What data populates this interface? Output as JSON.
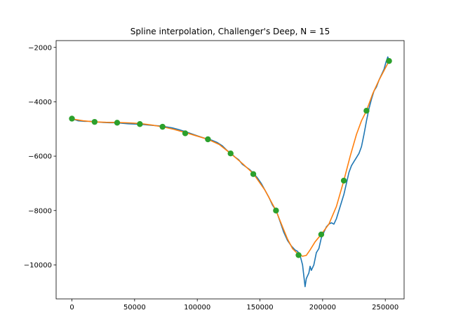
{
  "chart_data": {
    "type": "line",
    "title": "Spline interpolation, Challenger's Deep, N = 15",
    "xlabel": "",
    "ylabel": "",
    "xlim": [
      -12600,
      265000
    ],
    "ylim": [
      -11250,
      -1750
    ],
    "xticks": [
      0,
      50000,
      100000,
      150000,
      200000,
      250000
    ],
    "xtick_labels": [
      "0",
      "50000",
      "100000",
      "150000",
      "200000",
      "250000"
    ],
    "yticks": [
      -10000,
      -8000,
      -6000,
      -4000,
      -2000
    ],
    "ytick_labels": [
      "−10000",
      "−8000",
      "−6000",
      "−4000",
      "−2000"
    ],
    "grid": false,
    "colors": {
      "data": "#1f77b4",
      "spline": "#ff7f0e",
      "nodes": "#2ca02c"
    },
    "series": [
      {
        "kind": "line",
        "color": "#1f77b4",
        "x": [
          0,
          5000,
          10000,
          15000,
          20000,
          25000,
          30000,
          36000,
          40000,
          45000,
          50000,
          55000,
          60000,
          65000,
          70000,
          75000,
          80000,
          85000,
          90000,
          95000,
          100000,
          105000,
          109000,
          112000,
          116000,
          120000,
          124000,
          127000,
          130000,
          133000,
          136000,
          139000,
          142000,
          145000,
          148000,
          151000,
          154000,
          157000,
          160000,
          163000,
          166000,
          169000,
          172000,
          175000,
          178000,
          180000,
          182000,
          184000,
          185000,
          186000,
          187000,
          189000,
          190000,
          191000,
          193000,
          195000,
          197000,
          199000,
          201000,
          203000,
          205000,
          207000,
          209000,
          211000,
          213000,
          215000,
          217000,
          219000,
          221000,
          223000,
          225000,
          227000,
          229000,
          231000,
          233000,
          235000,
          237000,
          239000,
          241000,
          243000,
          245000,
          247000,
          249000,
          250500,
          252000,
          253000
        ],
        "y": [
          -4620,
          -4700,
          -4720,
          -4720,
          -4740,
          -4760,
          -4770,
          -4770,
          -4790,
          -4810,
          -4820,
          -4830,
          -4850,
          -4870,
          -4890,
          -4920,
          -4960,
          -5020,
          -5090,
          -5170,
          -5250,
          -5330,
          -5380,
          -5420,
          -5500,
          -5620,
          -5800,
          -5900,
          -6030,
          -6130,
          -6300,
          -6400,
          -6500,
          -6640,
          -6800,
          -7000,
          -7250,
          -7500,
          -7800,
          -8000,
          -8400,
          -8800,
          -9100,
          -9300,
          -9450,
          -9500,
          -9650,
          -10000,
          -10400,
          -10800,
          -10500,
          -10300,
          -10050,
          -10200,
          -10000,
          -9550,
          -9400,
          -9000,
          -8800,
          -8600,
          -8500,
          -8450,
          -8500,
          -8300,
          -8000,
          -7700,
          -7400,
          -7000,
          -6600,
          -6350,
          -6200,
          -6050,
          -5900,
          -5650,
          -5200,
          -4700,
          -4250,
          -3900,
          -3600,
          -3450,
          -3200,
          -3000,
          -2800,
          -2550,
          -2350,
          -2500
        ]
      },
      {
        "kind": "line",
        "color": "#ff7f0e",
        "x": [
          0,
          9000,
          18100,
          27000,
          36100,
          45000,
          54200,
          63000,
          72300,
          81000,
          90400,
          99000,
          108500,
          117500,
          126600,
          136000,
          144700,
          154000,
          162800,
          168000,
          172000,
          176000,
          180800,
          184000,
          187000,
          190000,
          194000,
          199000,
          205000,
          211000,
          216900,
          222000,
          227000,
          231000,
          235000,
          240000,
          245000,
          249000,
          253000
        ],
        "y": [
          -4630,
          -4700,
          -4740,
          -4755,
          -4760,
          -4775,
          -4800,
          -4850,
          -4920,
          -5010,
          -5130,
          -5250,
          -5380,
          -5570,
          -5900,
          -6270,
          -6640,
          -7250,
          -8000,
          -8600,
          -9050,
          -9400,
          -9620,
          -9680,
          -9650,
          -9450,
          -9150,
          -8870,
          -8500,
          -7850,
          -6900,
          -6000,
          -5200,
          -4700,
          -4330,
          -3700,
          -3200,
          -2850,
          -2500
        ]
      },
      {
        "kind": "points",
        "color": "#2ca02c",
        "x": [
          0,
          18100,
          36100,
          54200,
          72300,
          90400,
          108500,
          126600,
          144700,
          162800,
          180800,
          198900,
          216900,
          235000,
          253000
        ],
        "y": [
          -4620,
          -4740,
          -4770,
          -4820,
          -4920,
          -5160,
          -5380,
          -5900,
          -6660,
          -8000,
          -9640,
          -8880,
          -6900,
          -4330,
          -2500
        ]
      }
    ]
  }
}
